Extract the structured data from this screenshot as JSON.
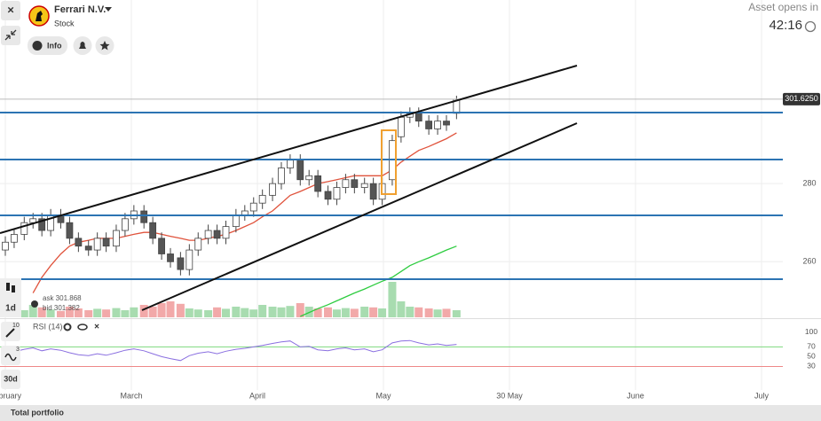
{
  "header": {
    "asset": "Ferrari N.V.",
    "asset_type": "Stock",
    "info": "Info",
    "countdown_label": "Asset opens in",
    "countdown": "42:16"
  },
  "toolbar": {
    "timeframe": "1d",
    "ask": "ask 301.868",
    "bid": "bid 301.382",
    "indicator_count": "10",
    "drawing_count": "3",
    "period": "30d"
  },
  "footer": {
    "portfolio": "Total portfolio"
  },
  "chart_data": {
    "type": "candlestick",
    "x": [
      -1.0,
      -0.93,
      -0.85,
      -0.78,
      -0.71,
      -0.64,
      -0.56,
      -0.49,
      -0.42,
      -0.34,
      -0.27,
      -0.2,
      -0.12,
      -0.05,
      0.02,
      0.1,
      0.17,
      0.24,
      0.31,
      0.39,
      0.46,
      0.53,
      0.61,
      0.68,
      0.75,
      0.83,
      0.9,
      0.97,
      1.04,
      1.12,
      1.19,
      1.26,
      1.34,
      1.41,
      1.48,
      1.56,
      1.63,
      1.7,
      1.77,
      1.85,
      1.92,
      1.99,
      2.07,
      2.14,
      2.21,
      2.28,
      2.36,
      2.43,
      2.5,
      2.58
    ],
    "open": [
      263,
      265,
      267,
      270,
      271,
      268,
      272,
      270,
      266,
      264,
      263,
      266,
      264,
      268,
      271,
      273,
      270,
      266,
      262,
      261,
      258,
      263,
      266,
      268,
      266,
      269,
      272,
      273,
      275,
      277,
      280,
      284,
      286,
      281,
      282,
      278,
      276,
      279,
      281,
      279,
      280,
      276,
      281,
      292,
      297,
      298,
      296,
      294,
      296,
      298
    ],
    "high": [
      266.5,
      268.5,
      271.5,
      272.5,
      272.5,
      273.5,
      273.5,
      271.5,
      267.5,
      265.5,
      267.5,
      267.5,
      269.5,
      272.5,
      274.5,
      274.5,
      271.5,
      267.5,
      263.5,
      262.5,
      264.5,
      267.5,
      269.5,
      269.5,
      270.5,
      273.5,
      274.5,
      276.5,
      278.5,
      281.5,
      285.5,
      287.5,
      287.5,
      283.5,
      283.5,
      279.5,
      280.5,
      282.5,
      282.5,
      281.5,
      281.5,
      281.5,
      292.5,
      298.5,
      299.5,
      299.5,
      297.5,
      297.5,
      297.5,
      302.5
    ],
    "low": [
      261.5,
      263.5,
      265.5,
      268.5,
      266.5,
      266.5,
      268.5,
      264.5,
      262.5,
      261.5,
      261.5,
      262.5,
      262.5,
      266.5,
      269.5,
      268.5,
      264.5,
      260.5,
      258.5,
      256.5,
      256.5,
      261.5,
      264.5,
      264.5,
      264.5,
      267.5,
      270.5,
      271.5,
      273.5,
      275.5,
      278.5,
      282.5,
      279.5,
      279.5,
      276.5,
      274.5,
      274.5,
      277.5,
      277.5,
      277.5,
      274.5,
      274.5,
      279.5,
      290.5,
      295.5,
      294.5,
      292.5,
      292.5,
      293.5,
      296.5
    ],
    "close": [
      265,
      267,
      270,
      271,
      268,
      272,
      270,
      266,
      264,
      263,
      266,
      264,
      268,
      271,
      273,
      270,
      266,
      262,
      260,
      258,
      263,
      266,
      268,
      266,
      269,
      272,
      273,
      275,
      277,
      280,
      284,
      286,
      281,
      282,
      278,
      276,
      279,
      281,
      279,
      280,
      276,
      280,
      291,
      297,
      298,
      296,
      294,
      296,
      295,
      301.6
    ],
    "up_color": "#ffffff",
    "down_color": "#555555",
    "overlays": [
      {
        "color": "#e0533c",
        "values": [
          null,
          null,
          null,
          252,
          256,
          259,
          262,
          264,
          265,
          265.5,
          266,
          266,
          266,
          266.5,
          267,
          267.5,
          267.5,
          267,
          266.5,
          266,
          265.5,
          265.5,
          266,
          266.5,
          267,
          268,
          269,
          270,
          271.5,
          273,
          275,
          277,
          278,
          279,
          280,
          280.5,
          281,
          281.5,
          282,
          282,
          282,
          282,
          283.5,
          285.5,
          287,
          288.5,
          289.5,
          290.5,
          291.5,
          293
        ]
      },
      {
        "color": "#2ecc40",
        "values": [
          null,
          null,
          null,
          null,
          null,
          null,
          null,
          null,
          null,
          null,
          null,
          null,
          null,
          null,
          null,
          null,
          null,
          null,
          null,
          null,
          null,
          null,
          null,
          null,
          null,
          null,
          null,
          null,
          null,
          null,
          null,
          null,
          246,
          247,
          248,
          249,
          250,
          251,
          252,
          253,
          254,
          255,
          256,
          257.5,
          259,
          260,
          261,
          262,
          263,
          264
        ]
      }
    ],
    "volume": {
      "values": [
        30,
        25,
        20,
        35,
        28,
        22,
        18,
        30,
        25,
        20,
        24,
        22,
        26,
        20,
        28,
        35,
        30,
        40,
        45,
        38,
        25,
        22,
        20,
        28,
        24,
        30,
        26,
        22,
        35,
        30,
        28,
        32,
        40,
        30,
        25,
        28,
        22,
        26,
        24,
        30,
        28,
        25,
        100,
        45,
        30,
        28,
        25,
        22,
        24,
        20
      ],
      "up_color": "#a8dcb0",
      "down_color": "#f2a9a9"
    },
    "xlim": [
      -1.04,
      5.48
    ],
    "xticks": [
      {
        "value": -1,
        "label": "February"
      },
      {
        "value": 0,
        "label": "March"
      },
      {
        "value": 1,
        "label": "April"
      },
      {
        "value": 2,
        "label": "May"
      },
      {
        "value": 3,
        "label": "30 May"
      },
      {
        "value": 4,
        "label": "June"
      },
      {
        "value": 5,
        "label": "July"
      }
    ],
    "ylim": [
      246,
      327
    ],
    "yticks": [
      260,
      280
    ],
    "last_price": {
      "value": 301.625,
      "label": "301.6250"
    },
    "rsi": {
      "title": "RSI (14)",
      "color": "#8a6fe0",
      "values": [
        55,
        60,
        65,
        68,
        62,
        66,
        63,
        58,
        54,
        52,
        56,
        53,
        58,
        63,
        66,
        62,
        56,
        50,
        46,
        42,
        52,
        57,
        60,
        56,
        61,
        65,
        67,
        70,
        73,
        77,
        80,
        82,
        70,
        71,
        64,
        62,
        66,
        68,
        64,
        66,
        60,
        64,
        78,
        82,
        83,
        78,
        74,
        76,
        73,
        75
      ],
      "ylim": [
        20,
        105
      ],
      "yticks": [
        100,
        70,
        50,
        30
      ]
    }
  }
}
